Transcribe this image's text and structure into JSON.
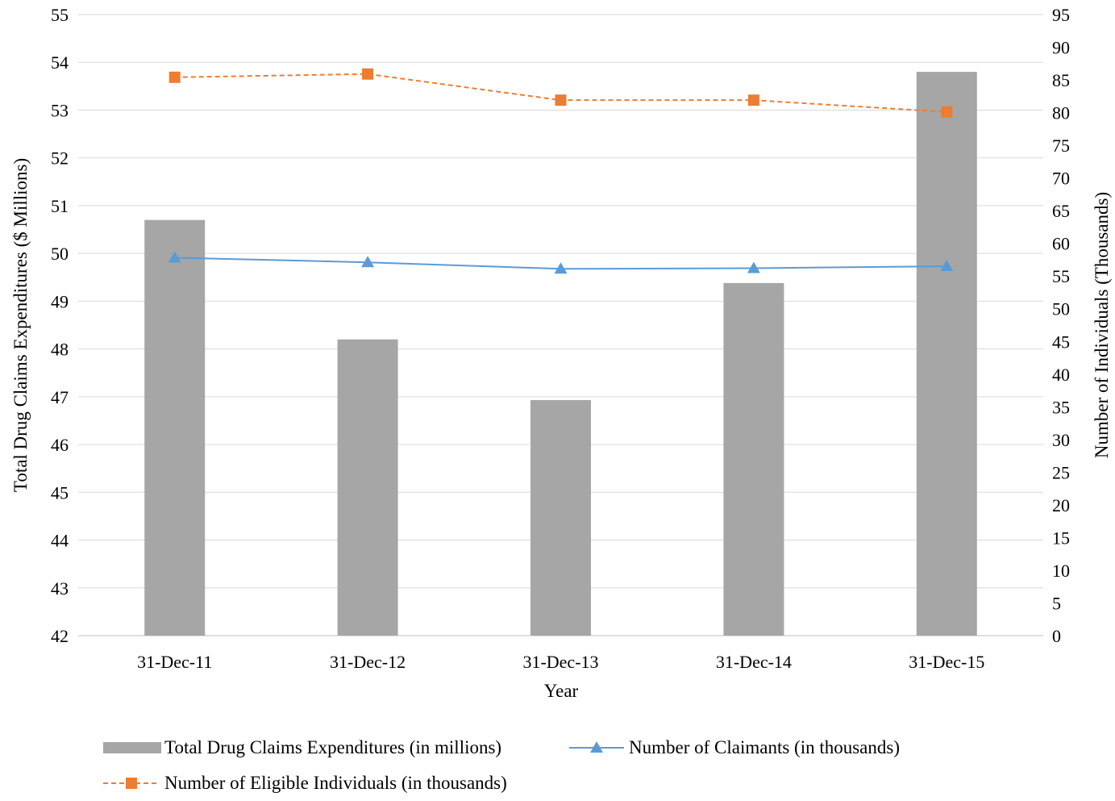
{
  "chart_data": {
    "type": "bar",
    "categories": [
      "31-Dec-11",
      "31-Dec-12",
      "31-Dec-13",
      "31-Dec-14",
      "31-Dec-15"
    ],
    "xlabel": "Year",
    "ylabel_left": "Total Drug Claims Expenditures ($ Millions)",
    "ylabel_right": "Number of Individuals (Thousands)",
    "y_left": {
      "range": [
        42,
        55
      ],
      "ticks": [
        "42",
        "43",
        "44",
        "45",
        "46",
        "47",
        "48",
        "49",
        "50",
        "51",
        "52",
        "53",
        "54",
        "55"
      ]
    },
    "y_right": {
      "range": [
        0,
        95
      ],
      "ticks": [
        "0",
        "5",
        "10",
        "15",
        "20",
        "25",
        "30",
        "35",
        "40",
        "45",
        "50",
        "55",
        "60",
        "65",
        "70",
        "75",
        "80",
        "85",
        "90",
        "95"
      ]
    },
    "grid": "horizontal",
    "legend_position": "bottom",
    "series": [
      {
        "name": "Total Drug Claims Expenditures (in millions)",
        "type": "bar",
        "axis": "left",
        "color": "#a6a6a6",
        "values": [
          50.7,
          48.2,
          46.93,
          49.38,
          53.8
        ]
      },
      {
        "name": "Number of Claimants (in thousands)",
        "type": "line",
        "axis": "right",
        "color": "#5b9bd5",
        "marker": "triangle",
        "line_style": "solid",
        "values": [
          57.8,
          57.1,
          56.1,
          56.2,
          56.5
        ]
      },
      {
        "name": "Number of Eligible Individuals (in thousands)",
        "type": "line",
        "axis": "right",
        "color": "#ed7d31",
        "marker": "square",
        "line_style": "dashed",
        "values": [
          85.4,
          85.9,
          81.9,
          81.9,
          80.1
        ]
      }
    ]
  }
}
